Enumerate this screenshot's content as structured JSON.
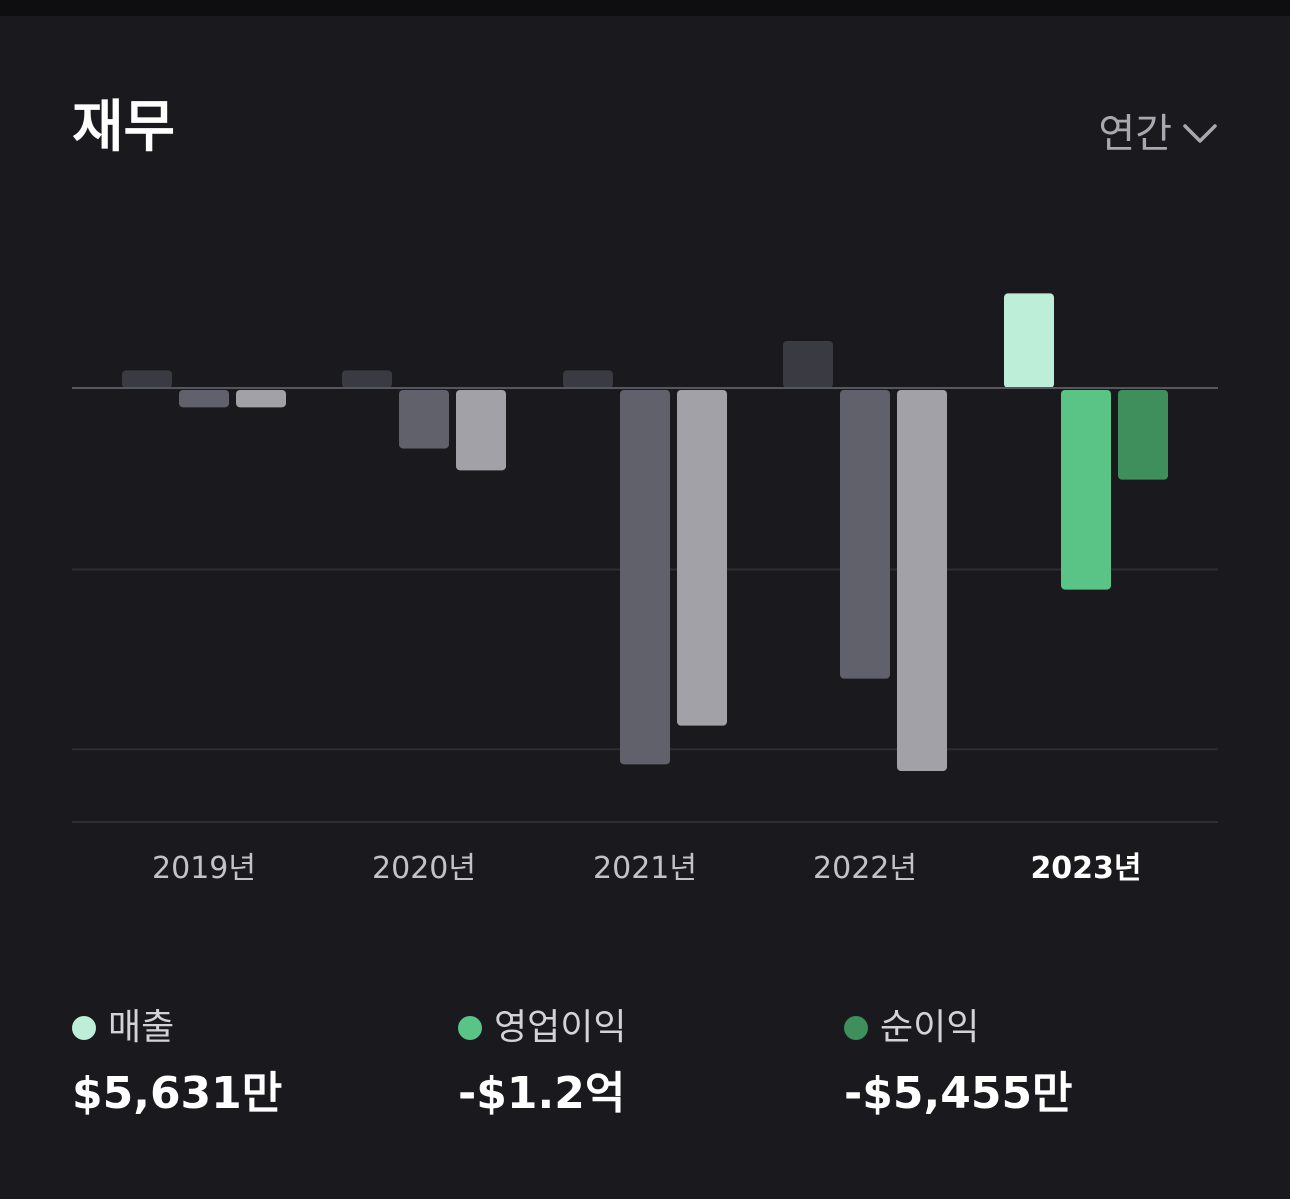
{
  "header": {
    "title": "재무",
    "period_label": "연간"
  },
  "chart_data": {
    "type": "bar",
    "categories": [
      "2019년",
      "2020년",
      "2021년",
      "2022년",
      "2023년"
    ],
    "selected_category": "2023년",
    "unit": "USD 만",
    "series": [
      {
        "name": "매출",
        "values": [
          1050,
          1050,
          1050,
          2800,
          5631
        ]
      },
      {
        "name": "영업이익",
        "values": [
          -1150,
          -3600,
          -22400,
          -17300,
          -12000
        ]
      },
      {
        "name": "순이익",
        "values": [
          -1150,
          -4900,
          -20100,
          -22800,
          -5455
        ]
      }
    ],
    "ylim": [
      -24000,
      5631
    ],
    "grid": true,
    "colors": {
      "inactive": [
        "#3a3a42",
        "#61616b",
        "#a1a1a7"
      ],
      "active": [
        "#bdeed8",
        "#5ac487",
        "#3f8f5c"
      ]
    }
  },
  "legend": [
    {
      "label": "매출",
      "value": "$5,631만",
      "color": "#bdeed8"
    },
    {
      "label": "영업이익",
      "value": "-$1.2억",
      "color": "#5ac487"
    },
    {
      "label": "순이익",
      "value": "-$5,455만",
      "color": "#3f8f5c"
    }
  ]
}
